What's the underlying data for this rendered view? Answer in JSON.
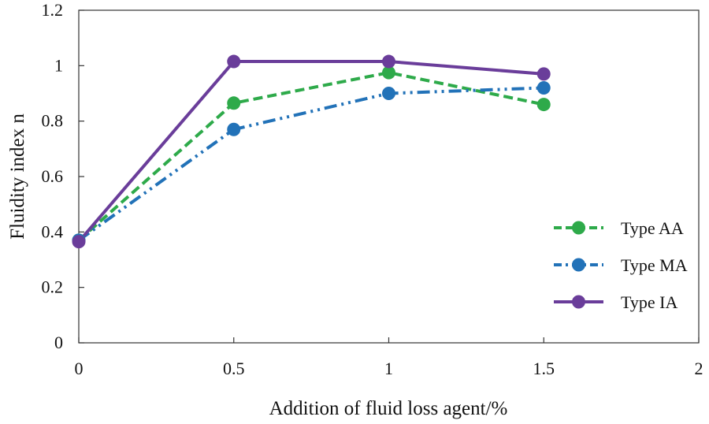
{
  "chart_data": {
    "type": "line",
    "title": "",
    "xlabel": "Addition of fluid loss agent/%",
    "ylabel": "Fluidity index n",
    "xlim": [
      0,
      2
    ],
    "ylim": [
      0,
      1.2
    ],
    "x_ticks": [
      "0",
      "0.5",
      "1",
      "1.5",
      "2"
    ],
    "y_ticks": [
      "0",
      "0.2",
      "0.4",
      "0.6",
      "0.8",
      "1",
      "1.2"
    ],
    "x": [
      0,
      0.5,
      1,
      1.5
    ],
    "grid": false,
    "legend_position": "right",
    "series": [
      {
        "name": "Type AA",
        "values": [
          0.37,
          0.865,
          0.975,
          0.86
        ],
        "color": "#2eaa4a",
        "line_style": "dashed"
      },
      {
        "name": "Type MA",
        "values": [
          0.37,
          0.77,
          0.9,
          0.92
        ],
        "color": "#2272b8",
        "line_style": "dash-dot-dot"
      },
      {
        "name": "Type IA",
        "values": [
          0.365,
          1.015,
          1.015,
          0.97
        ],
        "color": "#6a3d9a",
        "line_style": "solid"
      }
    ]
  }
}
